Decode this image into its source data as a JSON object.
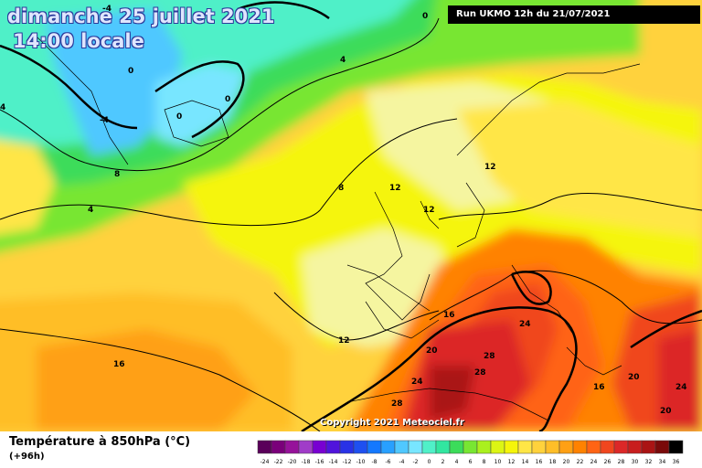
{
  "map": {
    "date_line": "dimanche 25 juillet 2021",
    "time_line": "14:00 locale",
    "run_info": "Run UKMO 12h du 21/07/2021",
    "copyright": "Copyright 2021 Meteociel.fr",
    "parameter_title": "Température à 850hPa (°C)",
    "forecast_step": "(+96h)",
    "contour_labels": [
      "-4",
      "-4",
      "0",
      "0",
      "0",
      "0",
      "4",
      "4",
      "4",
      "8",
      "8",
      "12",
      "12",
      "12",
      "12",
      "16",
      "16",
      "16",
      "20",
      "20",
      "20",
      "24",
      "24",
      "24",
      "28",
      "28",
      "28"
    ]
  },
  "legend": {
    "ticks": [
      "-24",
      "-22",
      "-20",
      "-18",
      "-16",
      "-14",
      "-12",
      "-10",
      "-8",
      "-6",
      "-4",
      "-2",
      "0",
      "2",
      "4",
      "6",
      "8",
      "10",
      "12",
      "14",
      "16",
      "18",
      "20",
      "22",
      "24",
      "26",
      "28",
      "30",
      "32",
      "34",
      "36"
    ],
    "colors": [
      "#5a005a",
      "#7a007a",
      "#96129a",
      "#a03cc8",
      "#7800d2",
      "#5014dc",
      "#2832e6",
      "#1e50f0",
      "#1478ff",
      "#28a0ff",
      "#50c8ff",
      "#78e6ff",
      "#50f0c8",
      "#32e6a0",
      "#3cdc5a",
      "#78e632",
      "#aaf01e",
      "#dcf514",
      "#f5f50a",
      "#ffe646",
      "#ffd23c",
      "#ffbe28",
      "#ffa014",
      "#ff8200",
      "#ff6414",
      "#f0461e",
      "#dc2828",
      "#c81e1e",
      "#aa1414",
      "#7a0a0a",
      "#000000"
    ]
  }
}
